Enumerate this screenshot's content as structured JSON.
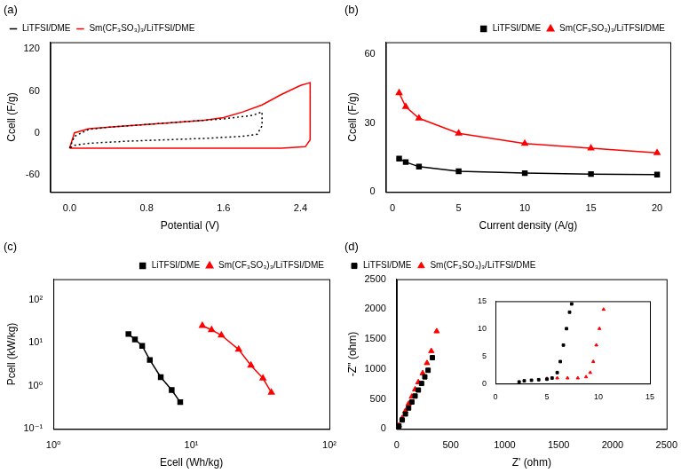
{
  "chart_data": [
    {
      "type": "line",
      "title": "(a)",
      "x_label": "Potential (V)",
      "y_label": "Ccell (F/g)",
      "xlim": [
        -0.2,
        2.7
      ],
      "xticks": [
        {
          "value": 0,
          "label": "0.0"
        },
        {
          "value": 0.8,
          "label": "0.8"
        },
        {
          "value": 1.6,
          "label": "1.6"
        },
        {
          "value": 2.4,
          "label": "2.4"
        }
      ],
      "ylim": [
        -85,
        130
      ],
      "yticks": [
        -60,
        0,
        60,
        120
      ],
      "grid": false,
      "legend": "upper left",
      "series": [
        {
          "name": "LiTFSI/DME",
          "color": "#000000",
          "marker": "none",
          "line_style": "dotted",
          "x": [
            0,
            0.05,
            0.2,
            0.4,
            0.8,
            1.2,
            1.6,
            1.9,
            2.0,
            2.0,
            1.95,
            1.8,
            1.4,
            1.0,
            0.6,
            0.2,
            0.05,
            0
          ],
          "values": [
            -22,
            -5,
            5,
            8,
            12,
            16,
            20,
            25,
            30,
            10,
            -2,
            -5,
            -8,
            -10,
            -12,
            -15,
            -18,
            -22
          ]
        },
        {
          "name": "Sm(CF₃SO₃)₃/LiTFSI/DME",
          "color": "#ff0000",
          "marker": "none",
          "line_style": "solid",
          "x": [
            0,
            0.05,
            0.2,
            0.6,
            1.0,
            1.4,
            1.6,
            1.8,
            2.0,
            2.2,
            2.4,
            2.5,
            2.5,
            2.45,
            2.2,
            1.6,
            0.8,
            0.2,
            0.05,
            0
          ],
          "values": [
            -22,
            0,
            6,
            10,
            14,
            18,
            22,
            30,
            40,
            55,
            68,
            72,
            -10,
            -20,
            -22,
            -22,
            -22,
            -22,
            -22,
            -22
          ]
        }
      ]
    },
    {
      "type": "line",
      "title": "(b)",
      "x_label": "Current density (A/g)",
      "y_label": "Ccell (F/g)",
      "xlim": [
        -0.5,
        21
      ],
      "xticks": [
        0,
        5,
        10,
        15,
        20
      ],
      "ylim": [
        0,
        65
      ],
      "yticks": [
        0,
        30,
        60
      ],
      "grid": false,
      "legend": "upper right",
      "x": [
        0.5,
        1,
        2,
        5,
        10,
        15,
        20
      ],
      "series": [
        {
          "name": "LiTFSI/DME",
          "color": "#000000",
          "marker": "square",
          "line_style": "solid",
          "values": [
            14.5,
            13,
            11,
            9,
            8.2,
            7.8,
            7.6
          ]
        },
        {
          "name": "Sm(CF₃SO₃)₃/LiTFSI/DME",
          "color": "#ff0000",
          "marker": "triangle",
          "line_style": "solid",
          "values": [
            43,
            37,
            32,
            25.5,
            21,
            19,
            17
          ]
        }
      ]
    },
    {
      "type": "line",
      "title": "(c)",
      "x_label": "Ecell (Wh/kg)",
      "y_label": "Pcell (kW/kg)",
      "log": true,
      "xlim": [
        1,
        100
      ],
      "xticks": [
        {
          "value": 1,
          "label": "10⁰"
        },
        {
          "value": 10,
          "label": "10¹"
        },
        {
          "value": 100,
          "label": "10²"
        }
      ],
      "ylim": [
        0.1,
        300
      ],
      "yticks": [
        {
          "value": 0.1,
          "label": "10⁻¹"
        },
        {
          "value": 1,
          "label": "10⁰"
        },
        {
          "value": 10,
          "label": "10¹"
        },
        {
          "value": 100,
          "label": "10²"
        }
      ],
      "grid": false,
      "legend": "upper right",
      "series": [
        {
          "name": "LiTFSI/DME",
          "color": "#000000",
          "marker": "square",
          "line_style": "solid",
          "x": [
            3.5,
            3.9,
            4.4,
            5,
            6,
            7.2,
            8.3
          ],
          "values": [
            16,
            12,
            8.5,
            4,
            1.6,
            0.8,
            0.42
          ]
        },
        {
          "name": "Sm(CF₃SO₃)₃/LiTFSI/DME",
          "color": "#ff0000",
          "marker": "triangle",
          "line_style": "solid",
          "x": [
            12,
            14,
            16.5,
            22,
            27,
            33,
            38
          ],
          "values": [
            25,
            20,
            15,
            7,
            3,
            1.5,
            0.7
          ]
        }
      ]
    },
    {
      "type": "scatter",
      "title": "(d)",
      "x_label": "Z' (ohm)",
      "y_label": "-Z'' (ohm)",
      "xlim": [
        0,
        2500
      ],
      "xticks": [
        0,
        500,
        1000,
        1500,
        2000,
        2500
      ],
      "ylim": [
        0,
        2500
      ],
      "yticks": [
        0,
        500,
        1000,
        1500,
        2000,
        2500
      ],
      "grid": false,
      "legend": "upper left",
      "series": [
        {
          "name": "LiTFSI/DME",
          "color": "#000000",
          "marker": "square",
          "x": [
            20,
            50,
            80,
            110,
            140,
            170,
            200,
            230,
            260,
            290,
            330
          ],
          "values": [
            50,
            150,
            250,
            350,
            450,
            550,
            650,
            760,
            870,
            980,
            1190
          ]
        },
        {
          "name": "Sm(CF₃SO₃)₃/LiTFSI/DME",
          "color": "#ff0000",
          "marker": "triangle",
          "x": [
            20,
            50,
            80,
            110,
            140,
            170,
            200,
            240,
            280,
            320,
            370
          ],
          "values": [
            60,
            180,
            300,
            420,
            540,
            660,
            780,
            930,
            1100,
            1300,
            1630
          ]
        }
      ]
    },
    {
      "type": "scatter",
      "xlim": [
        0,
        15
      ],
      "xticks": [
        0,
        5,
        10,
        15
      ],
      "ylim": [
        0,
        15
      ],
      "yticks": [
        0,
        5,
        10,
        15
      ],
      "grid": false,
      "series": [
        {
          "color": "#000000",
          "marker": "square",
          "x": [
            2.3,
            2.8,
            3.5,
            4.2,
            5,
            5.5,
            6,
            6.3,
            6.6,
            6.9,
            7.2,
            7.4
          ],
          "values": [
            0.3,
            0.5,
            0.6,
            0.7,
            0.8,
            1,
            2,
            4,
            7,
            10,
            13,
            14.5
          ]
        },
        {
          "color": "#ff0000",
          "marker": "triangle",
          "x": [
            5,
            6,
            7,
            8,
            8.8,
            9.2,
            9.5,
            9.8,
            10.1,
            10.5
          ],
          "values": [
            0.9,
            1,
            1,
            1,
            1.2,
            2,
            4,
            7,
            10,
            13.5
          ]
        }
      ]
    }
  ]
}
